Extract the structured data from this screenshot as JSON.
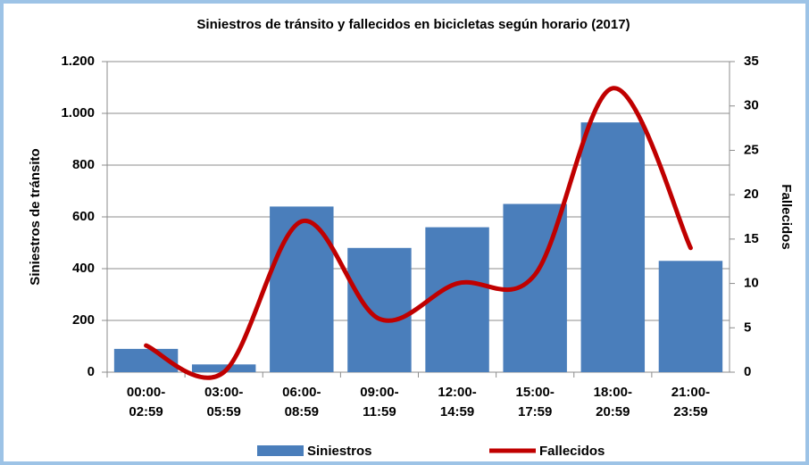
{
  "chart_data": {
    "type": "bar",
    "title": "Siniestros de tránsito y fallecidos en bicicletas según horario (2017)",
    "categories": [
      "00:00- 02:59",
      "03:00- 05:59",
      "06:00- 08:59",
      "09:00- 11:59",
      "12:00- 14:59",
      "15:00- 17:59",
      "18:00- 20:59",
      "21:00- 23:59"
    ],
    "series": [
      {
        "name": "Siniestros",
        "type": "bar",
        "color": "#4a7ebb",
        "values": [
          90,
          30,
          640,
          480,
          560,
          650,
          965,
          430
        ]
      },
      {
        "name": "Fallecidos",
        "type": "line",
        "axis": "y2",
        "color": "#c00000",
        "values": [
          3,
          0,
          17,
          6,
          10,
          11,
          32,
          14
        ]
      }
    ],
    "ylabel": "Siniestros de tránsito",
    "y2label": "Fallecidos",
    "ylim": [
      0,
      1200
    ],
    "yticks": [
      0,
      200,
      400,
      600,
      800,
      {
        "value": 1000,
        "label": "1.000"
      },
      {
        "value": 1200,
        "label": "1.200"
      }
    ],
    "y2lim": [
      0,
      35
    ],
    "y2ticks": [
      0,
      5,
      10,
      15,
      20,
      25,
      30,
      35
    ],
    "grid": true,
    "legend": "bottom"
  }
}
